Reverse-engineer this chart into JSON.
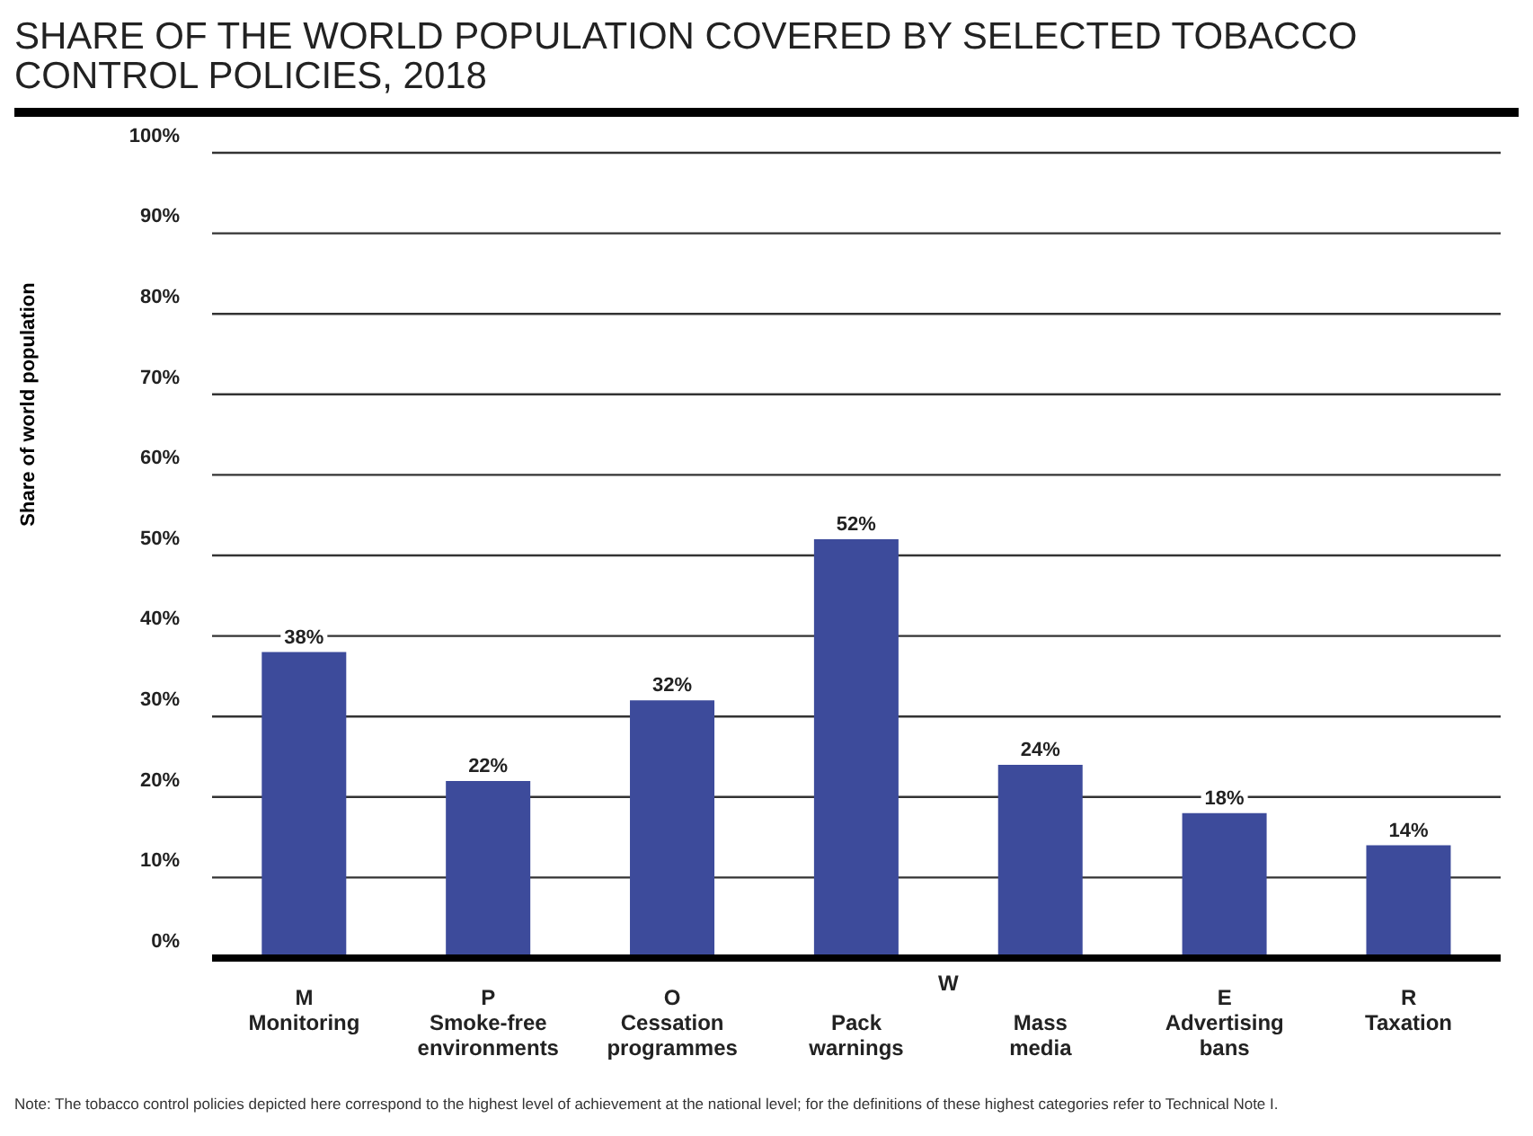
{
  "chart_data": {
    "type": "bar",
    "title": "SHARE OF THE WORLD POPULATION COVERED BY SELECTED TOBACCO CONTROL POLICIES, 2018",
    "ylabel": "Share of world population",
    "categories": [
      "M\nMonitoring",
      "P\nSmoke-free\nenvironments",
      "O\nCessation\nprogrammes",
      "Pack\nwarnings",
      "Mass\nmedia",
      "E\nAdvertising\nbans",
      "R\nTaxation"
    ],
    "values": [
      38,
      22,
      32,
      52,
      24,
      18,
      14
    ],
    "color": "#3d4b9b",
    "ylim": [
      0,
      100
    ],
    "yticks": [
      {
        "value": 0,
        "label": "0%"
      },
      {
        "value": 10,
        "label": "10%"
      },
      {
        "value": 20,
        "label": "20%"
      },
      {
        "value": 30,
        "label": "30%"
      },
      {
        "value": 40,
        "label": "40%"
      },
      {
        "value": 50,
        "label": "50%"
      },
      {
        "value": 60,
        "label": "60%"
      },
      {
        "value": 70,
        "label": "70%"
      },
      {
        "value": 80,
        "label": "80%"
      },
      {
        "value": 90,
        "label": "90%"
      },
      {
        "value": 100,
        "label": "100%"
      }
    ],
    "grid": "y",
    "value_labels": [
      "38%",
      "22%",
      "32%",
      "52%",
      "24%",
      "18%",
      "14%"
    ],
    "annotations": [
      "W",
      "Note: The tobacco control policies depicted here correspond to the highest level of achievement at the national level; for the definitions of these highest categories refer to Technical Note I."
    ]
  }
}
